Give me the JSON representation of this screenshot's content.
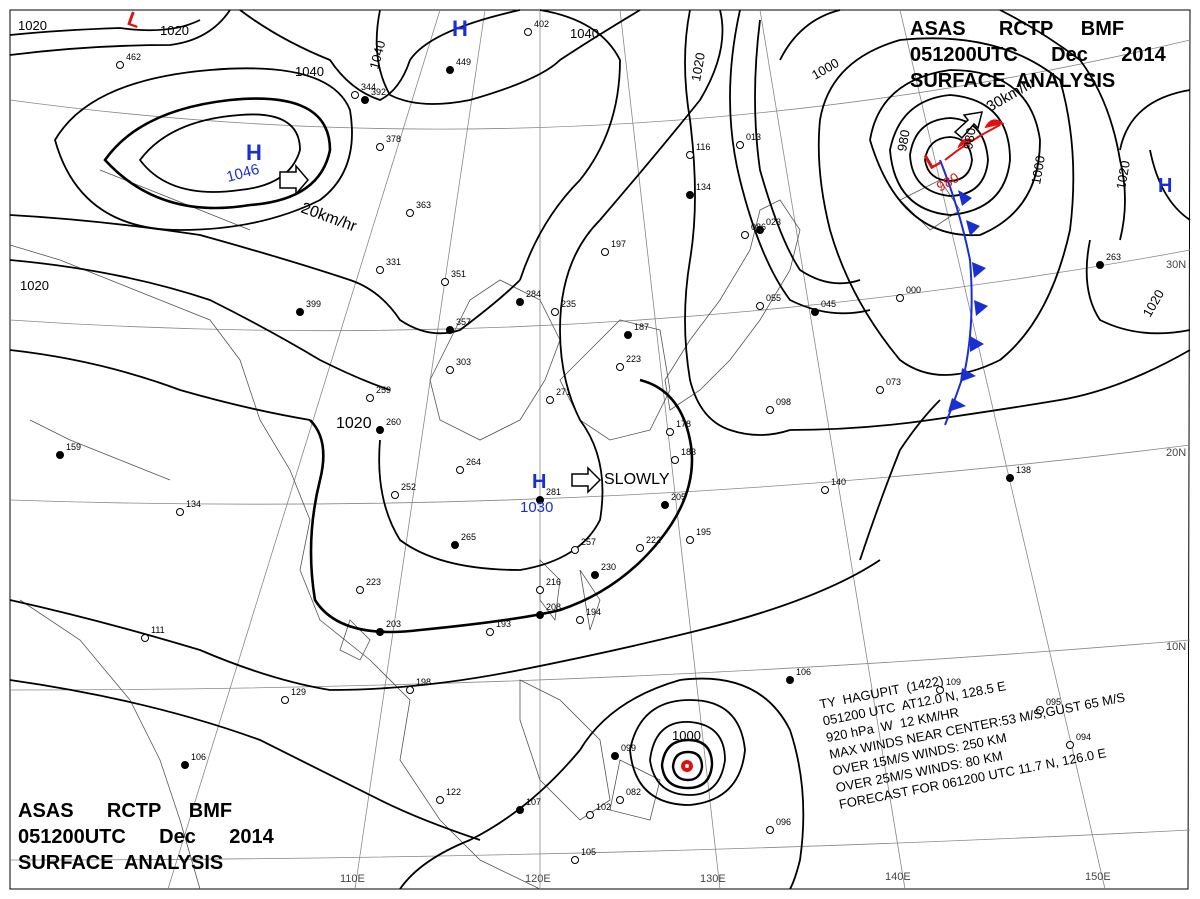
{
  "title_top": {
    "line1": "ASAS      RCTP     BMF",
    "line2": "051200UTC      Dec      2014",
    "line3": "SURFACE  ANALYSIS"
  },
  "title_bottom": {
    "line1": "ASAS      RCTP     BMF",
    "line2": "051200UTC      Dec      2014",
    "line3": "SURFACE  ANALYSIS"
  },
  "typhoon": {
    "line1": "TY  HAGUPIT  (1422)",
    "line2": "051200 UTC  AT12.0 N, 128.5 E",
    "line3": "920 hPa  W  12 KM/HR",
    "line4": "MAX WINDS NEAR CENTER:53 M/S,GUST 65 M/S",
    "line5": "OVER 15M/S WINDS: 250 KM",
    "line6": "OVER 25M/S WINDS: 80 KM",
    "line7": "FORECAST FOR 061200 UTC 11.7 N, 126.0 E"
  },
  "pressure_centers": {
    "h_north": {
      "symbol": "H",
      "value": ""
    },
    "h_west": {
      "symbol": "H",
      "value": "1046"
    },
    "h_central": {
      "symbol": "H",
      "value": "1030"
    },
    "h_east": {
      "symbol": "H",
      "value": ""
    },
    "l_north": {
      "symbol": "L",
      "value": ""
    },
    "l_east": {
      "symbol": "L",
      "value": "980"
    }
  },
  "motion": {
    "west_high": "20km/hr",
    "central_high": "SLOWLY",
    "east_low": "30km/hr"
  },
  "isobar_labels": [
    "1020",
    "1020",
    "1040",
    "1040",
    "1040",
    "1020",
    "1000",
    "980",
    "980",
    "1000",
    "1020",
    "1020",
    "1020",
    "1020",
    "1000"
  ],
  "grid_labels": {
    "lat": [
      "30N",
      "20N",
      "10N"
    ],
    "lon": [
      "110E",
      "120E",
      "130E",
      "140E",
      "150E"
    ]
  },
  "station_labels": [
    "159",
    "134",
    "111",
    "106",
    "129",
    "223",
    "203",
    "198",
    "122",
    "107",
    "105",
    "102",
    "099",
    "082",
    "096",
    "265",
    "252",
    "264",
    "281",
    "257",
    "216",
    "208",
    "193",
    "194",
    "230",
    "222",
    "195",
    "205",
    "183",
    "178",
    "260",
    "259",
    "303",
    "357",
    "331",
    "351",
    "284",
    "235",
    "197",
    "187",
    "223",
    "271",
    "399",
    "363",
    "378",
    "449",
    "462",
    "402",
    "392",
    "344",
    "013",
    "023",
    "098",
    "116",
    "134",
    "086",
    "055",
    "045",
    "000",
    "073",
    "138",
    "140",
    "109",
    "106",
    "095",
    "094",
    "263"
  ],
  "colors": {
    "front": "#1a2fd0",
    "warm_front": "#e01010",
    "high": "#1a2fd0",
    "low": "#e01010",
    "isobar": "#000000",
    "grid": "#808080"
  }
}
